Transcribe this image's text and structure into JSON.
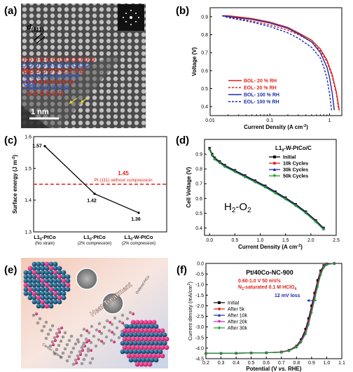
{
  "panels": {
    "a": {
      "label": "(a)",
      "d_label": "d",
      "d_sub": "(111)",
      "pt_label": "Pt",
      "co_label": "Co",
      "scale_label": "1 nm",
      "colors": {
        "pt": "#d9322b",
        "co": "#3a5fd9",
        "arrow": "#e8d62a"
      }
    },
    "b": {
      "label": "(b)"
    },
    "c": {
      "label": "(c)"
    },
    "d": {
      "label": "(d)"
    },
    "e": {
      "label": "(e)",
      "heat_label": "Heat Treatment",
      "ordered_label": "Ordered PtCo",
      "carbon_label": "Carbon support"
    },
    "f": {
      "label": "(f)"
    }
  },
  "chart_data": [
    {
      "id": "b",
      "type": "line",
      "xlabel": "Current Density (A cm",
      "xlabel_sup": "-2",
      "xlabel_end": ")",
      "ylabel": "Voltage (V)",
      "xscale": "log",
      "xlim": [
        0.01,
        1.6
      ],
      "ylim": [
        0.35,
        0.95
      ],
      "xticks": [
        0.01,
        0.1,
        1
      ],
      "xtick_labels": [
        "0.01",
        "0.1",
        "1"
      ],
      "yticks": [
        0.4,
        0.5,
        0.6,
        0.7,
        0.8,
        0.9
      ],
      "ytick_labels": [
        "0.4",
        "0.5",
        "0.6",
        "0.7",
        "0.8",
        "0.9"
      ],
      "legend_position": "bottom-right",
      "series": [
        {
          "name": "BOL- 20 % RH",
          "color": "#e0201a",
          "dash": false,
          "x": [
            0.016,
            0.02,
            0.05,
            0.1,
            0.2,
            0.3,
            0.5,
            0.7,
            0.9,
            1.1,
            1.3,
            1.45
          ],
          "y": [
            0.905,
            0.905,
            0.89,
            0.87,
            0.84,
            0.81,
            0.77,
            0.72,
            0.66,
            0.58,
            0.48,
            0.38
          ]
        },
        {
          "name": "EOL- 20 % RH",
          "color": "#e0201a",
          "dash": true,
          "x": [
            0.016,
            0.02,
            0.05,
            0.1,
            0.2,
            0.3,
            0.5,
            0.7,
            0.9,
            1.1,
            1.3,
            1.42
          ],
          "y": [
            0.905,
            0.9,
            0.875,
            0.855,
            0.825,
            0.8,
            0.76,
            0.71,
            0.65,
            0.57,
            0.47,
            0.38
          ]
        },
        {
          "name": "BOL- 100 % RH",
          "color": "#1a2aa8",
          "dash": false,
          "x": [
            0.016,
            0.02,
            0.05,
            0.1,
            0.2,
            0.3,
            0.5,
            0.7,
            0.9,
            1.0,
            1.1,
            1.2
          ],
          "y": [
            0.905,
            0.9,
            0.885,
            0.865,
            0.835,
            0.805,
            0.76,
            0.7,
            0.62,
            0.56,
            0.48,
            0.38
          ]
        },
        {
          "name": "EOL- 100 % RH",
          "color": "#1a2aa8",
          "dash": true,
          "x": [
            0.016,
            0.02,
            0.05,
            0.1,
            0.2,
            0.3,
            0.5,
            0.7,
            0.8,
            0.9,
            1.0,
            1.08
          ],
          "y": [
            0.905,
            0.895,
            0.87,
            0.845,
            0.81,
            0.78,
            0.73,
            0.67,
            0.62,
            0.56,
            0.47,
            0.38
          ]
        }
      ]
    },
    {
      "id": "c",
      "type": "line",
      "ylabel": "Surface energy (J m",
      "ylabel_sup": "-2",
      "ylabel_end": ")",
      "ylim": [
        1.3,
        1.6
      ],
      "yticks": [
        1.3,
        1.4,
        1.5,
        1.6
      ],
      "ytick_labels": [
        "1.3",
        "1.4",
        "1.5",
        "1.6"
      ],
      "categories": [
        {
          "main": "L1",
          "sub": "0",
          "rest": "-PtCo",
          "note": "(No strain)"
        },
        {
          "main": "L1",
          "sub": "0",
          "rest": "-PtCo",
          "note": "(2% compression)"
        },
        {
          "main": "L1",
          "sub": "0",
          "rest": "-W-PtCo",
          "note": "(2% compression)"
        }
      ],
      "values": [
        1.57,
        1.42,
        1.36
      ],
      "value_labels": [
        "1.57",
        "1.42",
        "1.36"
      ],
      "line_color": "#000000",
      "reference": {
        "value": 1.45,
        "value_label": "1.45",
        "text": "Pt (111) without compression",
        "color": "#e0201a"
      }
    },
    {
      "id": "d",
      "type": "line",
      "title_main": "L1",
      "title_sub": "0",
      "title_rest": "-W-PtCo/C",
      "annotation_main": "H",
      "annotation_sub1": "2",
      "annotation_mid": "-O",
      "annotation_sub2": "2",
      "xlabel": "Current Density (A cm",
      "xlabel_sup": "-2",
      "xlabel_end": ")",
      "ylabel": "Cell Voltage (V)",
      "xlim": [
        -0.1,
        2.5
      ],
      "ylim": [
        0.35,
        1.0
      ],
      "xticks": [
        0.0,
        0.5,
        1.0,
        1.5,
        2.0,
        2.5
      ],
      "xtick_labels": [
        "0.0",
        "0.5",
        "1.0",
        "1.5",
        "2.0",
        "2.5"
      ],
      "yticks": [
        0.4,
        0.5,
        0.6,
        0.7,
        0.8,
        0.9
      ],
      "ytick_labels": [
        "0.4",
        "0.5",
        "0.6",
        "0.7",
        "0.8",
        "0.9"
      ],
      "legend_position": "top-right",
      "x": [
        0.0,
        0.05,
        0.1,
        0.2,
        0.3,
        0.5,
        0.7,
        0.9,
        1.1,
        1.3,
        1.5,
        1.7,
        1.9,
        2.1,
        2.25
      ],
      "series": [
        {
          "name": "Initial",
          "color": "#000000",
          "marker": "square",
          "y": [
            0.94,
            0.9,
            0.875,
            0.85,
            0.825,
            0.79,
            0.755,
            0.72,
            0.685,
            0.645,
            0.605,
            0.56,
            0.51,
            0.45,
            0.4
          ]
        },
        {
          "name": "10k Cycles",
          "color": "#e0201a",
          "marker": "circle",
          "y": [
            0.935,
            0.895,
            0.87,
            0.845,
            0.82,
            0.785,
            0.75,
            0.715,
            0.68,
            0.64,
            0.6,
            0.555,
            0.505,
            0.445,
            0.395
          ]
        },
        {
          "name": "30k Cycles",
          "color": "#1a2aa8",
          "marker": "triangle",
          "y": [
            0.935,
            0.895,
            0.87,
            0.845,
            0.82,
            0.785,
            0.75,
            0.715,
            0.68,
            0.64,
            0.6,
            0.555,
            0.505,
            0.445,
            0.395
          ]
        },
        {
          "name": "50k Cycles",
          "color": "#1f9a2a",
          "marker": "triangle-down",
          "y": [
            0.93,
            0.89,
            0.865,
            0.84,
            0.815,
            0.78,
            0.745,
            0.71,
            0.675,
            0.635,
            0.595,
            0.55,
            0.5,
            0.44,
            0.39
          ]
        }
      ]
    },
    {
      "id": "f",
      "type": "line",
      "title": "Pt/40Co-NC-900",
      "cond_line1": "0.60-1.0 V 50 mV/s",
      "cond_line2_pre": "N",
      "cond_line2_sub": "2",
      "cond_line2_mid": "-saturated 0.1 M HClO",
      "cond_line2_sub2": "4",
      "loss_label": "12 mV loss",
      "xlabel_pre": "Potential (V ",
      "xlabel_italic": "vs.",
      "xlabel_post": " RHE)",
      "ylabel": "Current density (mA/cm",
      "ylabel_sup": "2",
      "ylabel_end": ")",
      "xlim": [
        0.2,
        1.1
      ],
      "ylim": [
        -4.5,
        0.0
      ],
      "xticks": [
        0.2,
        0.3,
        0.4,
        0.5,
        0.6,
        0.7,
        0.8,
        0.9,
        1.0,
        1.1
      ],
      "xtick_labels": [
        "0.2",
        "0.3",
        "0.4",
        "0.5",
        "0.6",
        "0.7",
        "0.8",
        "0.9",
        "1.0",
        "1.1"
      ],
      "yticks": [
        0.0,
        -0.5,
        -1.0,
        -1.5,
        -2.0,
        -2.5,
        -3.0,
        -3.5,
        -4.0,
        -4.5
      ],
      "ytick_labels": [
        "0.0",
        "-0.5",
        "-1.0",
        "-1.5",
        "-2.0",
        "-2.5",
        "-3.0",
        "-3.5",
        "-4.0",
        "-4.5"
      ],
      "legend_position": "left",
      "x": [
        0.2,
        0.3,
        0.4,
        0.5,
        0.6,
        0.7,
        0.75,
        0.8,
        0.83,
        0.86,
        0.88,
        0.9,
        0.92,
        0.94,
        0.96,
        0.98,
        1.0,
        1.05
      ],
      "series": [
        {
          "name": "Initial",
          "color": "#000000",
          "marker": "square",
          "y": [
            -4.25,
            -4.25,
            -4.24,
            -4.23,
            -4.22,
            -4.18,
            -4.1,
            -3.9,
            -3.6,
            -3.1,
            -2.6,
            -2.0,
            -1.4,
            -0.8,
            -0.35,
            -0.1,
            -0.02,
            0.0
          ]
        },
        {
          "name": "After 5k",
          "color": "#e0201a",
          "marker": "circle",
          "y": [
            -4.25,
            -4.25,
            -4.24,
            -4.23,
            -4.22,
            -4.18,
            -4.1,
            -3.92,
            -3.65,
            -3.2,
            -2.7,
            -2.12,
            -1.52,
            -0.92,
            -0.42,
            -0.13,
            -0.03,
            0.0
          ]
        },
        {
          "name": "After 10k",
          "color": "#1a2aa8",
          "marker": "triangle",
          "y": [
            -4.25,
            -4.25,
            -4.24,
            -4.23,
            -4.22,
            -4.19,
            -4.11,
            -3.93,
            -3.67,
            -3.24,
            -2.76,
            -2.18,
            -1.58,
            -0.98,
            -0.46,
            -0.15,
            -0.04,
            0.0
          ]
        },
        {
          "name": "After 20k",
          "color": "#c21fc2",
          "marker": "triangle-down",
          "y": [
            -4.25,
            -4.25,
            -4.24,
            -4.23,
            -4.22,
            -4.19,
            -4.12,
            -3.94,
            -3.69,
            -3.28,
            -2.82,
            -2.25,
            -1.64,
            -1.04,
            -0.5,
            -0.17,
            -0.05,
            0.0
          ]
        },
        {
          "name": "After 30k",
          "color": "#1f9a2a",
          "marker": "diamond",
          "y": [
            -4.25,
            -4.25,
            -4.24,
            -4.23,
            -4.22,
            -4.2,
            -4.13,
            -3.96,
            -3.72,
            -3.33,
            -2.88,
            -2.32,
            -1.72,
            -1.1,
            -0.55,
            -0.2,
            -0.06,
            0.0
          ]
        }
      ]
    }
  ]
}
